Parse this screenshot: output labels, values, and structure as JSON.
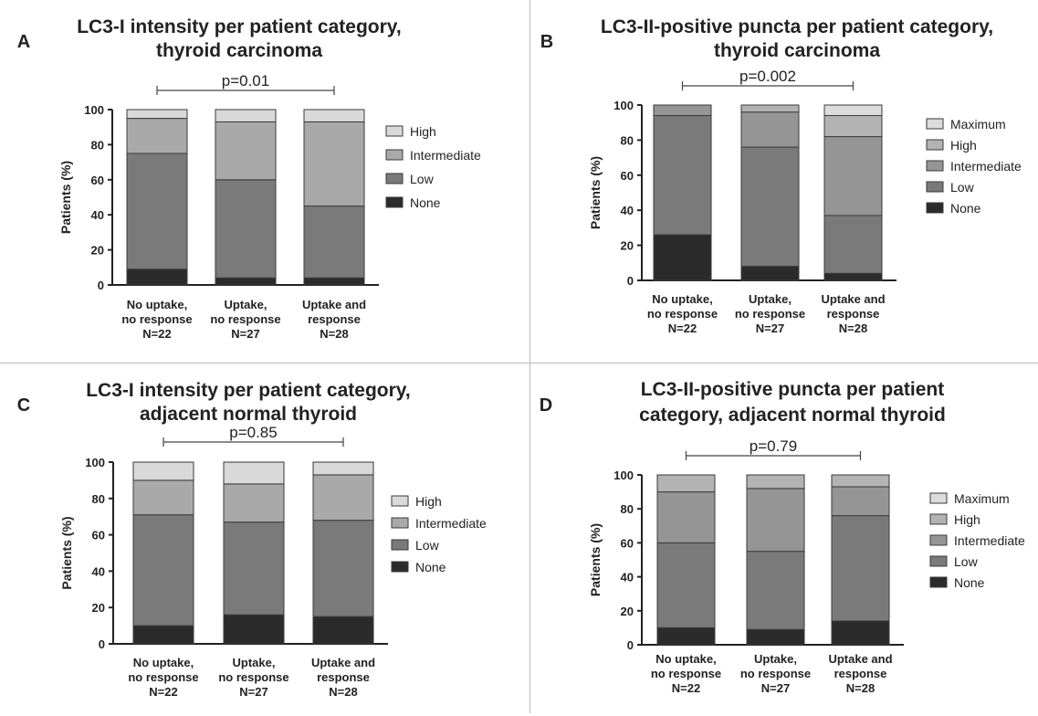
{
  "figure": {
    "panels": [
      {
        "id": "a",
        "letter": "A",
        "title": [
          "LC3-I intensity per patient category,",
          "thyroid carcinoma"
        ],
        "pvalue": "p=0.01"
      },
      {
        "id": "b",
        "letter": "B",
        "title": [
          "LC3-II-positive puncta per patient category,",
          "thyroid carcinoma"
        ],
        "pvalue": "p=0.002"
      },
      {
        "id": "c",
        "letter": "C",
        "title": [
          "LC3-I intensity per patient category,",
          "adjacent normal thyroid"
        ],
        "pvalue": "p=0.85"
      },
      {
        "id": "d",
        "letter": "D",
        "title": [
          "LC3-II-positive puncta per patient",
          "category, adjacent normal thyroid"
        ],
        "pvalue": "p=0.79"
      }
    ]
  },
  "chart_data": [
    {
      "type": "bar",
      "stacked": true,
      "title": "LC3-I intensity per patient category, thyroid carcinoma",
      "ylabel": "Patients (%)",
      "ylim": [
        0,
        100
      ],
      "yticks": [
        0,
        20,
        40,
        60,
        80,
        100
      ],
      "categories": [
        [
          "No uptake,",
          "no response",
          "N=22"
        ],
        [
          "Uptake,",
          "no response",
          "N=27"
        ],
        [
          "Uptake and",
          "response",
          "N=28"
        ]
      ],
      "series": [
        {
          "name": "None",
          "color": "#2b2b2b",
          "values": [
            9,
            4,
            4
          ]
        },
        {
          "name": "Low",
          "color": "#7a7a7a",
          "values": [
            66,
            56,
            41
          ]
        },
        {
          "name": "Intermediate",
          "color": "#a9a9a9",
          "values": [
            20,
            33,
            48
          ]
        },
        {
          "name": "High",
          "color": "#d9d9d9",
          "values": [
            5,
            7,
            7
          ]
        }
      ],
      "annotation": "p=0.01",
      "legend_position": "right"
    },
    {
      "type": "bar",
      "stacked": true,
      "title": "LC3-II-positive puncta per patient category, thyroid carcinoma",
      "ylabel": "Patients (%)",
      "ylim": [
        0,
        100
      ],
      "yticks": [
        0,
        20,
        40,
        60,
        80,
        100
      ],
      "categories": [
        [
          "No uptake,",
          "no response",
          "N=22"
        ],
        [
          "Uptake,",
          "no response",
          "N=27"
        ],
        [
          "Uptake and",
          "response",
          "N=28"
        ]
      ],
      "series": [
        {
          "name": "None",
          "color": "#2b2b2b",
          "values": [
            26,
            8,
            4
          ]
        },
        {
          "name": "Low",
          "color": "#7a7a7a",
          "values": [
            68,
            68,
            33
          ]
        },
        {
          "name": "Intermediate",
          "color": "#959595",
          "values": [
            6,
            20,
            45
          ]
        },
        {
          "name": "High",
          "color": "#b3b3b3",
          "values": [
            0,
            4,
            12
          ]
        },
        {
          "name": "Maximum",
          "color": "#dcdcdc",
          "values": [
            0,
            0,
            6
          ]
        }
      ],
      "annotation": "p=0.002",
      "legend_position": "right"
    },
    {
      "type": "bar",
      "stacked": true,
      "title": "LC3-I intensity per patient category, adjacent normal thyroid",
      "ylabel": "Patients (%)",
      "ylim": [
        0,
        100
      ],
      "yticks": [
        0,
        20,
        40,
        60,
        80,
        100
      ],
      "categories": [
        [
          "No uptake,",
          "no response",
          "N=22"
        ],
        [
          "Uptake,",
          "no response",
          "N=27"
        ],
        [
          "Uptake and",
          "response",
          "N=28"
        ]
      ],
      "series": [
        {
          "name": "None",
          "color": "#2b2b2b",
          "values": [
            10,
            16,
            15
          ]
        },
        {
          "name": "Low",
          "color": "#7a7a7a",
          "values": [
            61,
            51,
            53
          ]
        },
        {
          "name": "Intermediate",
          "color": "#a9a9a9",
          "values": [
            19,
            21,
            25
          ]
        },
        {
          "name": "High",
          "color": "#d9d9d9",
          "values": [
            10,
            12,
            7
          ]
        }
      ],
      "annotation": "p=0.85",
      "legend_position": "right"
    },
    {
      "type": "bar",
      "stacked": true,
      "title": "LC3-II-positive puncta per patient category, adjacent normal thyroid",
      "ylabel": "Patients (%)",
      "ylim": [
        0,
        100
      ],
      "yticks": [
        0,
        20,
        40,
        60,
        80,
        100
      ],
      "categories": [
        [
          "No uptake,",
          "no response",
          "N=22"
        ],
        [
          "Uptake,",
          "no response",
          "N=27"
        ],
        [
          "Uptake and",
          "response",
          "N=28"
        ]
      ],
      "series": [
        {
          "name": "None",
          "color": "#2b2b2b",
          "values": [
            10,
            9,
            14
          ]
        },
        {
          "name": "Low",
          "color": "#7a7a7a",
          "values": [
            50,
            46,
            62
          ]
        },
        {
          "name": "Intermediate",
          "color": "#959595",
          "values": [
            30,
            37,
            17
          ]
        },
        {
          "name": "High",
          "color": "#b3b3b3",
          "values": [
            10,
            8,
            7
          ]
        },
        {
          "name": "Maximum",
          "color": "#dcdcdc",
          "values": [
            0,
            0,
            0
          ]
        }
      ],
      "annotation": "p=0.79",
      "legend_position": "right"
    }
  ]
}
